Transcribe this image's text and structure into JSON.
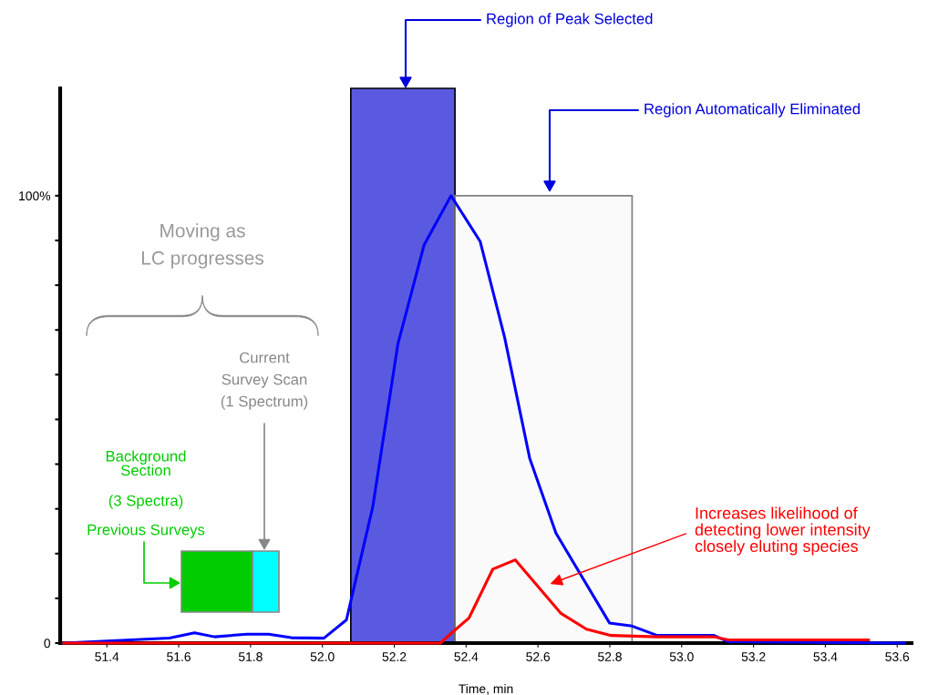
{
  "chart_data": {
    "type": "line",
    "xlabel": "Time, min",
    "xlim": [
      51.27,
      53.64
    ],
    "ylim": [
      0,
      124
    ],
    "xticks": [
      51.4,
      51.6,
      51.8,
      {
        "value": 52.0,
        "label": "52.0"
      },
      52.2,
      52.4,
      52.6,
      52.8,
      {
        "value": 53.0,
        "label": "53.0"
      },
      53.2,
      53.4,
      53.6
    ],
    "yticks": [
      {
        "value": 0,
        "label": "0"
      },
      {
        "value": 10,
        "label": null
      },
      {
        "value": 20,
        "label": null
      },
      {
        "value": 30,
        "label": null
      },
      {
        "value": 40,
        "label": null
      },
      {
        "value": 50,
        "label": null
      },
      {
        "value": 60,
        "label": null
      },
      {
        "value": 70,
        "label": null
      },
      {
        "value": 80,
        "label": null
      },
      {
        "value": 90,
        "label": null
      },
      {
        "value": 100,
        "label": "100%"
      }
    ],
    "grid": false,
    "marker": "none",
    "line_style": "solid",
    "series": [
      {
        "color": "#0000ff",
        "x": [
          51.28,
          51.574,
          51.644,
          51.7,
          51.79,
          51.85,
          51.913,
          52.004,
          52.067,
          52.14,
          52.21,
          52.283,
          52.358,
          52.439,
          52.507,
          52.577,
          52.65,
          52.799,
          52.862,
          52.932,
          53.045,
          53.09,
          53.13,
          53.62
        ],
        "values": [
          0,
          1.1,
          2.3,
          1.4,
          2.0,
          2.0,
          1.2,
          1.1,
          5.2,
          30.4,
          66.8,
          89.0,
          100,
          89.8,
          68.4,
          41.3,
          24.6,
          4.5,
          3.8,
          1.7,
          1.7,
          1.7,
          0.3,
          0
        ]
      },
      {
        "color": "#ff0000",
        "x": [
          51.28,
          52.328,
          52.366,
          52.408,
          52.474,
          52.537,
          52.663,
          52.735,
          52.804,
          52.932,
          53.09,
          53.13,
          53.52
        ],
        "values": [
          0,
          0,
          2.7,
          5.6,
          16.5,
          18.6,
          6.7,
          3.1,
          1.7,
          1.4,
          1.4,
          0.7,
          0.7
        ]
      }
    ],
    "bands": [
      {
        "axis": "x",
        "from": 52.079,
        "to": 52.369,
        "label": "Region of Peak Selected",
        "color": "#5a5ae0"
      },
      {
        "axis": "x",
        "from": 52.369,
        "to": 52.862,
        "label": "Region Automatically Eliminated",
        "color": "#808080"
      }
    ],
    "annotations": [
      "Moving as\nLC progresses",
      "Current\nSurvey Scan\n(1 Spectrum)",
      "Background\nSection",
      "(3 Spectra)",
      "Previous Surveys",
      "Increases likelihood of\ndetecting lower intensity\nclosely eluting species"
    ]
  }
}
